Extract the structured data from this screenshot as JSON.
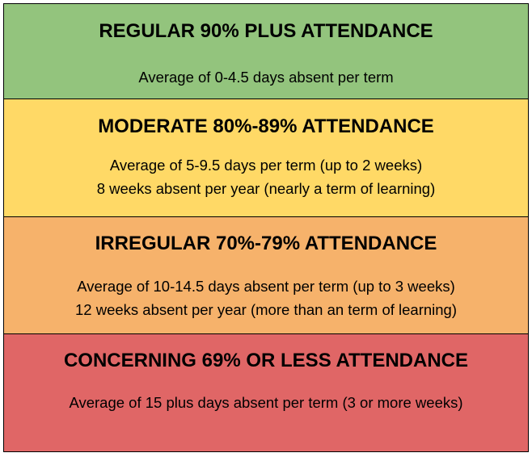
{
  "bands": [
    {
      "heading": "REGULAR 90% PLUS ATTENDANCE",
      "lines": [
        "Average of 0-4.5 days absent per term"
      ],
      "color": "#93c47d"
    },
    {
      "heading": "MODERATE 80%-89% ATTENDANCE",
      "lines": [
        "Average of 5-9.5 days per term (up to 2 weeks)",
        "8 weeks absent per year (nearly a term of learning)"
      ],
      "color": "#ffd966"
    },
    {
      "heading": "IRREGULAR 70%-79% ATTENDANCE",
      "lines": [
        "Average of 10-14.5 days absent per term (up to 3 weeks)",
        "12 weeks absent per year (more than an term of learning)"
      ],
      "color": "#f6b26b"
    },
    {
      "heading": "CONCERNING 69% OR LESS ATTENDANCE",
      "lines": [
        "Average of 15 plus days absent per term (3 or more weeks)"
      ],
      "color": "#e06666"
    }
  ]
}
